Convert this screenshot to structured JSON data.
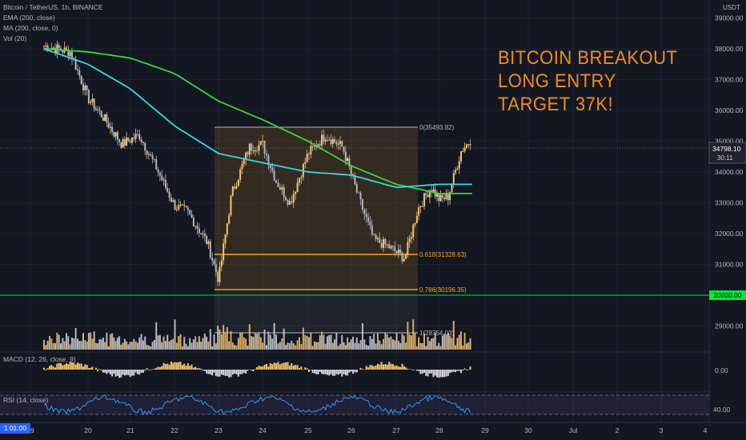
{
  "header": {
    "symbol_title": "Bitcoin / TetherUS, 1h, BINANCE",
    "indicators": [
      "EMA (200, close)",
      "MA (200, close, 0)",
      "Vol (20)"
    ],
    "currency": "USDT"
  },
  "annotation": {
    "lines": [
      "BITCOIN BREAKOUT",
      "LONG ENTRY",
      "TARGET 37K!"
    ],
    "color": "#f08c1e"
  },
  "panes": {
    "macd_label": "MACD (12, 26, close, 9)",
    "macd_tick": "0.00",
    "rsi_label": "RSI (14, close)",
    "rsi_tick": "40.00"
  },
  "price_scale": {
    "ticks": [
      "39000.00",
      "38000.00",
      "37000.00",
      "36000.00",
      "35000.00",
      "34000.00",
      "33000.00",
      "32000.00",
      "31000.00",
      "29000.00"
    ],
    "current_price": "34798.10",
    "countdown": "30:11",
    "level_label": "30000.00"
  },
  "time_axis": {
    "labels": [
      "19",
      "20",
      "21",
      "22",
      "23",
      "24",
      "25",
      "26",
      "27",
      "28",
      "29",
      "30",
      "Jul",
      "2",
      "3",
      "4"
    ],
    "cursor_label": "1  01:00"
  },
  "fib": {
    "levels": [
      {
        "label": "0(35493.82)",
        "ratio": 0,
        "price": 35493.82
      },
      {
        "label": "0.618(31328.63)",
        "ratio": 0.618,
        "price": 31328.63
      },
      {
        "label": "0.786(30196.35)",
        "ratio": 0.786,
        "price": 30196.35
      },
      {
        "label": "1(28754.03)",
        "ratio": 1,
        "price": 28754.03
      }
    ]
  },
  "chart_data": {
    "type": "line",
    "x": [
      "19",
      "20",
      "21",
      "22",
      "23",
      "24",
      "25",
      "26",
      "27",
      "28"
    ],
    "series": [
      {
        "name": "Close",
        "values": [
          38000,
          37000,
          35500,
          32300,
          31500,
          34200,
          35000,
          33300,
          31600,
          34800
        ],
        "color": "#f5c46b"
      },
      {
        "name": "EMA (200, close)",
        "values": [
          38000,
          37500,
          36700,
          35500,
          34600,
          34300,
          34000,
          33900,
          33500,
          33600
        ],
        "color": "#3ad6e6"
      },
      {
        "name": "MA (200, close, 0)",
        "values": [
          38000,
          37900,
          37700,
          37200,
          36300,
          35700,
          35000,
          34200,
          33600,
          33300
        ],
        "color": "#3ad63a"
      }
    ],
    "horizontal_levels": [
      30000
    ],
    "ylim": [
      28500,
      39500
    ],
    "colors": {
      "bull": "#f5c46b",
      "bear": "#b2b5be",
      "rsi": "#2b9af3",
      "level": "#00e640",
      "fib": "#f5a623"
    }
  }
}
